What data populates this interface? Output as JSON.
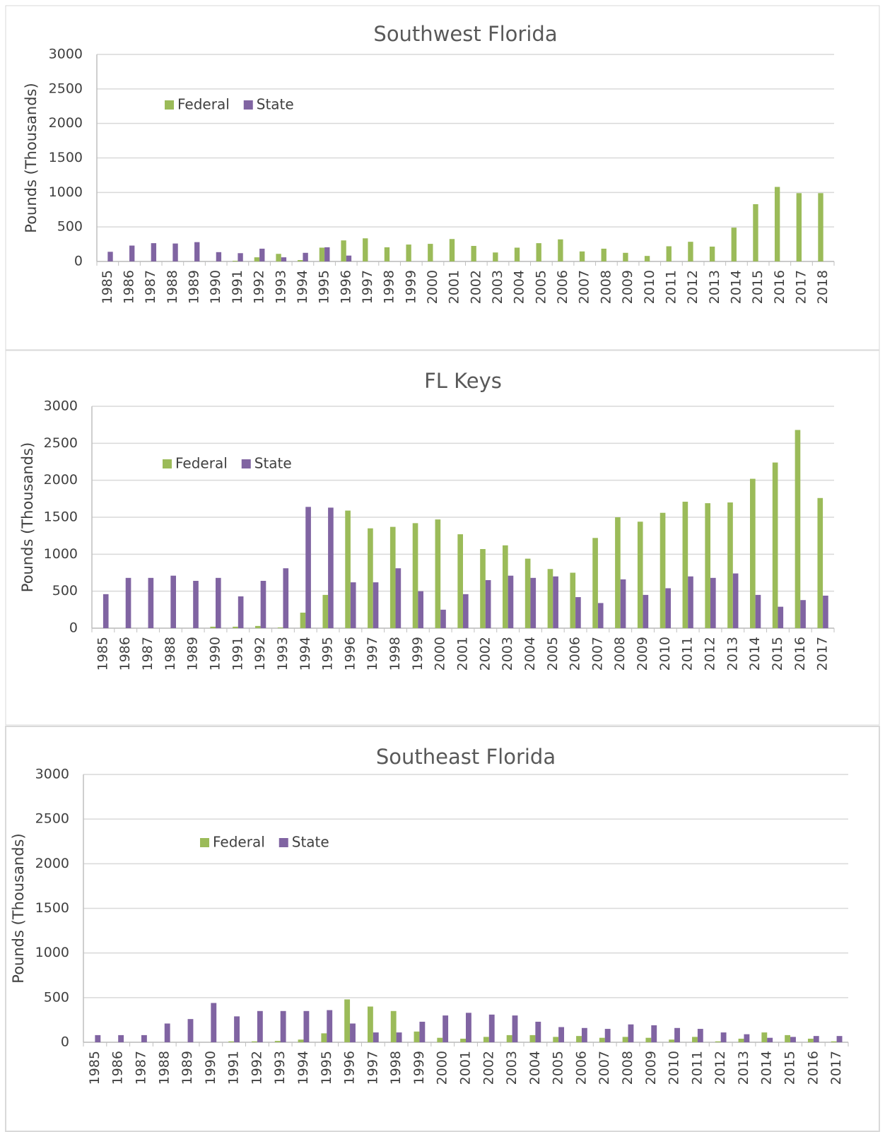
{
  "chart_data": [
    {
      "type": "bar",
      "title": "Southwest Florida",
      "y_label": "Pounds (Thousands)",
      "legend": "upper-left",
      "grid": true,
      "categories": [
        "1985",
        "1986",
        "1987",
        "1988",
        "1989",
        "1990",
        "1991",
        "1992",
        "1993",
        "1994",
        "1995",
        "1996",
        "1997",
        "1998",
        "1999",
        "2000",
        "2001",
        "2002",
        "2003",
        "2004",
        "2005",
        "2006",
        "2007",
        "2008",
        "2009",
        "2010",
        "2011",
        "2012",
        "2013",
        "2014",
        "2015",
        "2016",
        "2017",
        "2018"
      ],
      "series": [
        {
          "name": "Federal",
          "color": "#9bbb59",
          "values": [
            0,
            0,
            0,
            0,
            0,
            0,
            10,
            60,
            110,
            20,
            200,
            305,
            335,
            205,
            245,
            255,
            325,
            225,
            130,
            200,
            265,
            320,
            145,
            185,
            125,
            80,
            220,
            285,
            215,
            490,
            830,
            1080,
            990,
            990
          ]
        },
        {
          "name": "State",
          "color": "#8064a2",
          "values": [
            140,
            230,
            265,
            260,
            280,
            135,
            120,
            185,
            60,
            125,
            205,
            85,
            0,
            0,
            0,
            0,
            0,
            0,
            0,
            0,
            0,
            0,
            0,
            0,
            0,
            0,
            0,
            0,
            0,
            0,
            0,
            0,
            0,
            0
          ]
        }
      ],
      "ylim": [
        0,
        3000
      ],
      "yticks": [
        0,
        500,
        1000,
        1500,
        2000,
        2500,
        3000
      ]
    },
    {
      "type": "bar",
      "title": "FL Keys",
      "y_label": "Pounds (Thousands)",
      "legend": "upper-left",
      "grid": true,
      "categories": [
        "1985",
        "1986",
        "1987",
        "1988",
        "1989",
        "1990",
        "1991",
        "1992",
        "1993",
        "1994",
        "1995",
        "1996",
        "1997",
        "1998",
        "1999",
        "2000",
        "2001",
        "2002",
        "2003",
        "2004",
        "2005",
        "2006",
        "2007",
        "2008",
        "2009",
        "2010",
        "2011",
        "2012",
        "2013",
        "2014",
        "2015",
        "2016",
        "2017"
      ],
      "series": [
        {
          "name": "Federal",
          "color": "#9bbb59",
          "values": [
            0,
            0,
            0,
            0,
            0,
            20,
            20,
            30,
            10,
            210,
            450,
            1590,
            1350,
            1370,
            1420,
            1470,
            1270,
            1070,
            1120,
            940,
            800,
            750,
            1220,
            1500,
            1440,
            1560,
            1710,
            1690,
            1700,
            2020,
            2240,
            2680,
            1760
          ]
        },
        {
          "name": "State",
          "color": "#8064a2",
          "values": [
            460,
            680,
            680,
            710,
            640,
            680,
            430,
            640,
            810,
            1640,
            1630,
            620,
            620,
            810,
            500,
            250,
            460,
            650,
            710,
            680,
            700,
            420,
            340,
            660,
            450,
            540,
            700,
            680,
            740,
            450,
            290,
            380,
            440
          ]
        }
      ],
      "ylim": [
        0,
        3000
      ],
      "yticks": [
        0,
        500,
        1000,
        1500,
        2000,
        2500,
        3000
      ]
    },
    {
      "type": "bar",
      "title": "Southeast Florida",
      "y_label": "Pounds (Thousands)",
      "legend": "upper-left",
      "grid": true,
      "categories": [
        "1985",
        "1986",
        "1987",
        "1988",
        "1989",
        "1990",
        "1991",
        "1992",
        "1993",
        "1994",
        "1995",
        "1996",
        "1997",
        "1998",
        "1999",
        "2000",
        "2001",
        "2002",
        "2003",
        "2004",
        "2005",
        "2006",
        "2007",
        "2008",
        "2009",
        "2010",
        "2011",
        "2012",
        "2013",
        "2014",
        "2015",
        "2016",
        "2017"
      ],
      "series": [
        {
          "name": "Federal",
          "color": "#9bbb59",
          "values": [
            0,
            0,
            0,
            0,
            0,
            0,
            10,
            10,
            15,
            30,
            100,
            480,
            400,
            350,
            120,
            50,
            40,
            60,
            80,
            80,
            60,
            70,
            50,
            60,
            50,
            30,
            60,
            10,
            40,
            110,
            80,
            40,
            10
          ]
        },
        {
          "name": "State",
          "color": "#8064a2",
          "values": [
            80,
            80,
            80,
            210,
            260,
            440,
            290,
            350,
            350,
            350,
            360,
            210,
            110,
            110,
            230,
            300,
            330,
            310,
            300,
            230,
            170,
            160,
            150,
            200,
            190,
            160,
            150,
            110,
            90,
            50,
            60,
            70,
            70
          ]
        }
      ],
      "ylim": [
        0,
        3000
      ],
      "yticks": [
        0,
        500,
        1000,
        1500,
        2000,
        2500,
        3000
      ]
    }
  ]
}
